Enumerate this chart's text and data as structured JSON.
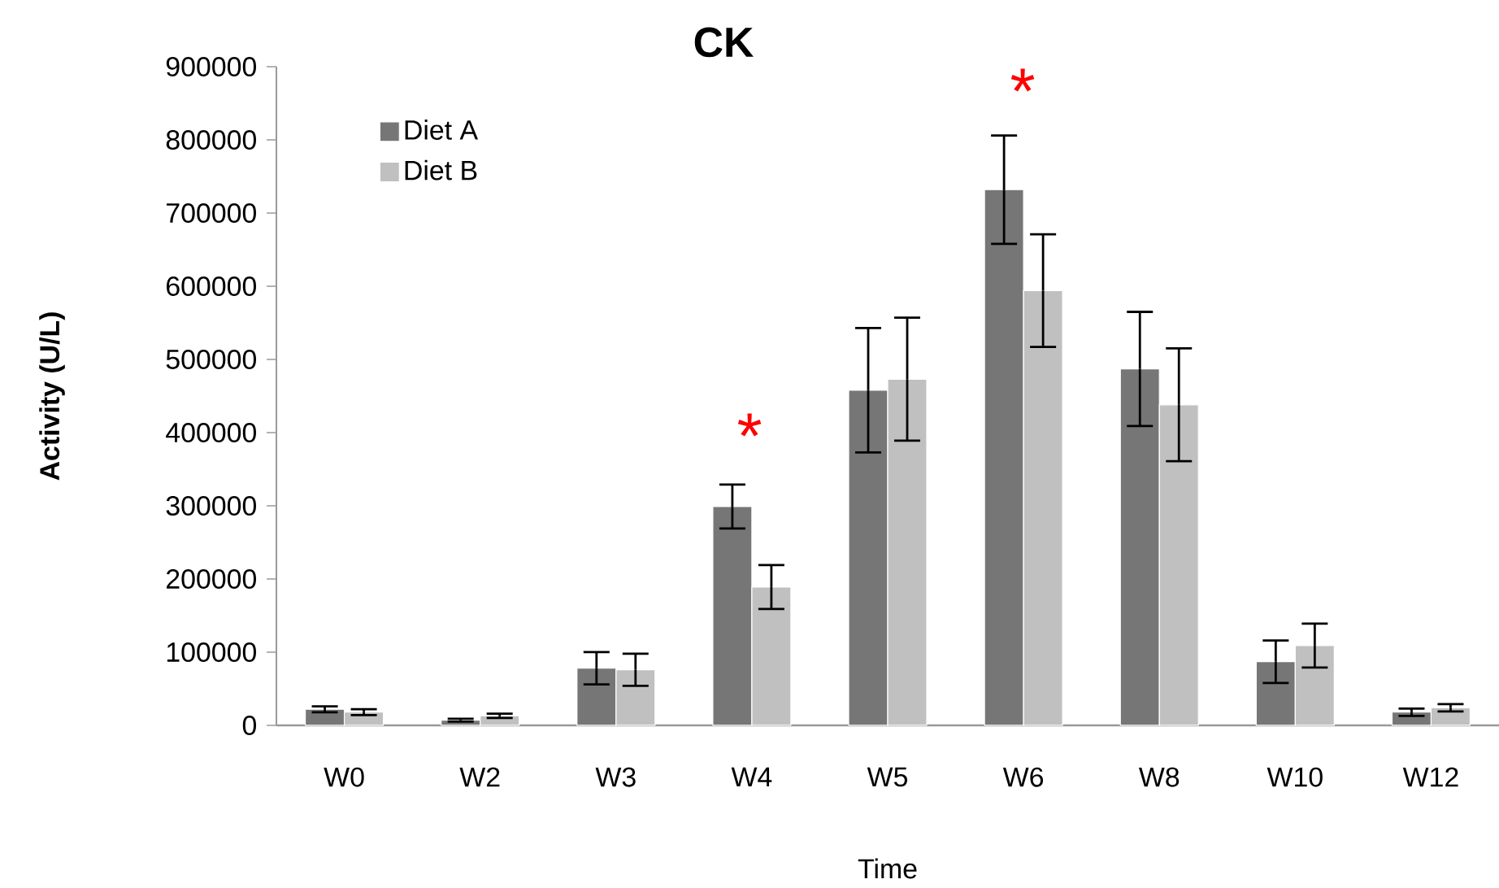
{
  "chart_data": {
    "type": "bar",
    "title": "CK",
    "xlabel": "Time",
    "ylabel": "Activity (U/L)",
    "categories": [
      "W0",
      "W2",
      "W3",
      "W4",
      "W5",
      "W6",
      "W8",
      "W10",
      "W12"
    ],
    "series": [
      {
        "name": "Diet A",
        "color": "#767676",
        "values": [
          22000,
          7000,
          78000,
          299000,
          458000,
          732000,
          487000,
          87000,
          18000
        ],
        "errors": [
          4000,
          2000,
          22000,
          30000,
          85000,
          74000,
          78000,
          29000,
          5000
        ]
      },
      {
        "name": "Diet B",
        "color": "#c0c0c0",
        "values": [
          18000,
          13000,
          76000,
          189000,
          473000,
          594000,
          438000,
          109000,
          24000
        ],
        "errors": [
          4000,
          3000,
          22000,
          30000,
          84000,
          77000,
          77000,
          30000,
          5000
        ]
      }
    ],
    "ylim": [
      0,
      900000
    ],
    "yticks": [
      0,
      100000,
      200000,
      300000,
      400000,
      500000,
      600000,
      700000,
      800000,
      900000
    ],
    "grid": false,
    "legend": "top left",
    "annotations": [
      "*",
      "*"
    ]
  }
}
